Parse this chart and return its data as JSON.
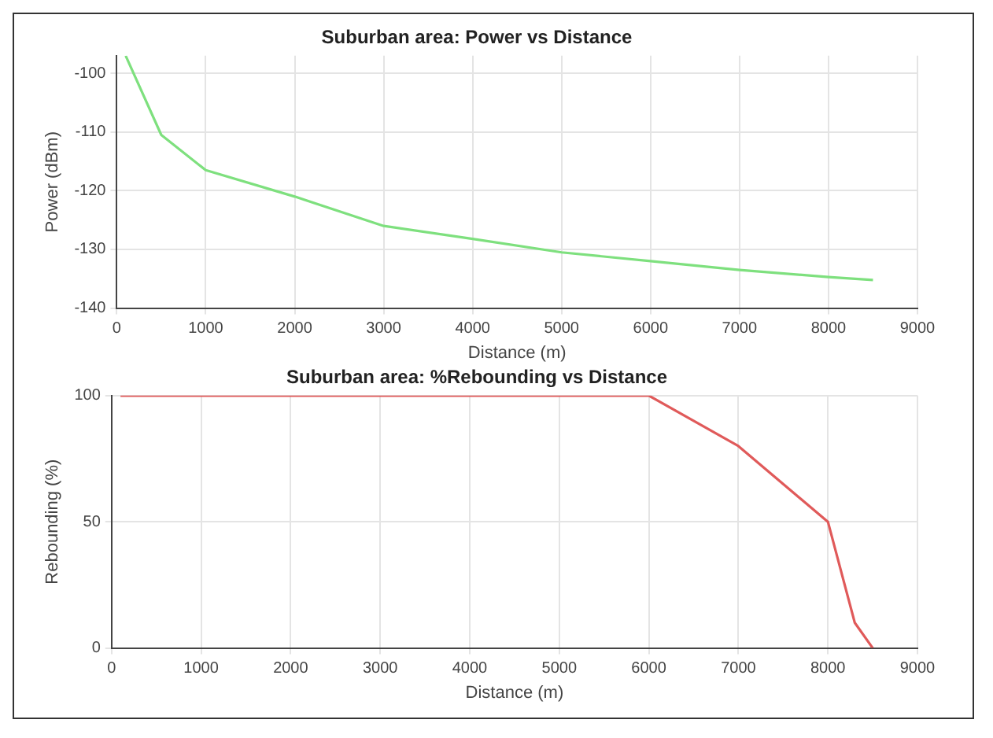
{
  "chart_data": [
    {
      "type": "line",
      "title": "Suburban area: Power vs Distance",
      "xlabel": "Distance (m)",
      "ylabel": "Power (dBm)",
      "xlim": [
        0,
        9000
      ],
      "xticks": [
        0,
        1000,
        2000,
        3000,
        4000,
        5000,
        6000,
        7000,
        8000,
        9000
      ],
      "ylim": [
        -140,
        -97
      ],
      "yticks": [
        -140,
        -130,
        -120,
        -110,
        -100
      ],
      "grid": true,
      "legend": false,
      "x": [
        100,
        500,
        1000,
        2000,
        3000,
        4000,
        5000,
        6000,
        7000,
        8000,
        8500
      ],
      "series": [
        {
          "color": "#7ee07e",
          "values": [
            -97,
            -110.5,
            -116.5,
            -121,
            -126,
            -128.2,
            -130.5,
            -132,
            -133.5,
            -134.7,
            -135.2
          ]
        }
      ]
    },
    {
      "type": "line",
      "title": "Suburban area: %Rebounding vs Distance",
      "xlabel": "Distance (m)",
      "ylabel": "Rebounding (%)",
      "xlim": [
        0,
        9000
      ],
      "xticks": [
        0,
        1000,
        2000,
        3000,
        4000,
        5000,
        6000,
        7000,
        8000,
        9000
      ],
      "ylim": [
        0,
        100
      ],
      "yticks": [
        0,
        50,
        100
      ],
      "grid": true,
      "legend": false,
      "x": [
        100,
        6000,
        7000,
        8000,
        8300,
        8500
      ],
      "series": [
        {
          "color": "#e05a5a",
          "values": [
            100,
            100,
            80,
            50,
            10,
            0
          ]
        }
      ]
    }
  ]
}
